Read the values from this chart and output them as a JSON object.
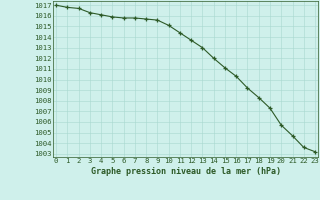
{
  "x": [
    0,
    1,
    2,
    3,
    4,
    5,
    6,
    7,
    8,
    9,
    10,
    11,
    12,
    13,
    14,
    15,
    16,
    17,
    18,
    19,
    20,
    21,
    22,
    23
  ],
  "y": [
    1017.0,
    1016.8,
    1016.7,
    1016.3,
    1016.1,
    1015.9,
    1015.8,
    1015.8,
    1015.7,
    1015.6,
    1015.1,
    1014.4,
    1013.7,
    1013.0,
    1012.0,
    1011.1,
    1010.3,
    1009.2,
    1008.3,
    1007.3,
    1005.7,
    1004.7,
    1003.6,
    1003.2
  ],
  "bg_color": "#cff0eb",
  "grid_color": "#a8d8d0",
  "line_color": "#2d5a27",
  "marker_color": "#2d5a27",
  "xlabel": "Graphe pression niveau de la mer (hPa)",
  "xlabel_color": "#2d5a27",
  "tick_color": "#2d5a27",
  "spine_color": "#2d5a27",
  "ylabel_ticks": [
    1003,
    1004,
    1005,
    1006,
    1007,
    1008,
    1009,
    1010,
    1011,
    1012,
    1013,
    1014,
    1015,
    1016,
    1017
  ],
  "ylim": [
    1002.7,
    1017.4
  ],
  "xlim": [
    -0.3,
    23.3
  ],
  "figwidth": 3.2,
  "figheight": 2.0,
  "dpi": 100
}
